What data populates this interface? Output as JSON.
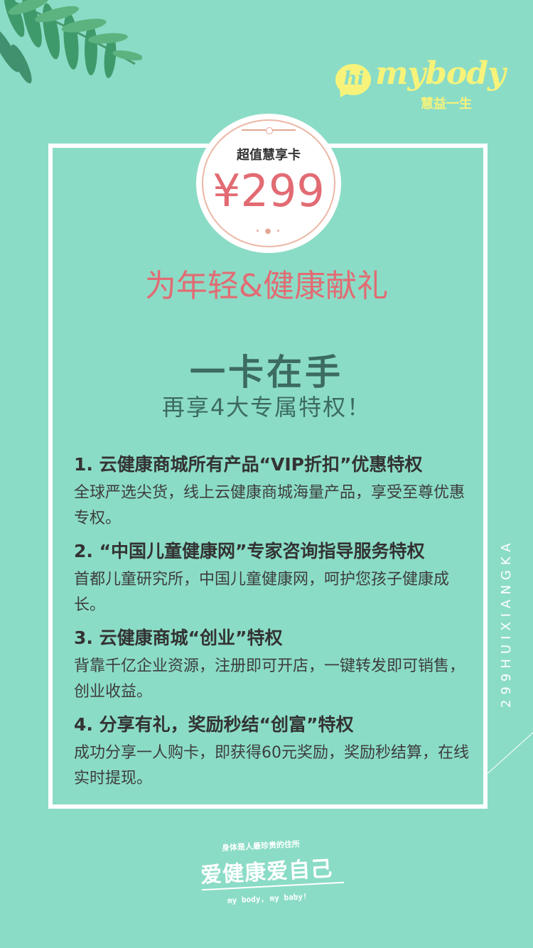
{
  "brand": {
    "logo_hi": "hi",
    "logo_name": "mybody",
    "logo_slogan": "慧益一生"
  },
  "badge": {
    "label": "超值慧享卡",
    "price": "¥299"
  },
  "headline": "为年轻&健康献礼",
  "title_main": "一卡在手",
  "title_sub": "再享4大专属特权！",
  "privileges": [
    {
      "title": "1. 云健康商城所有产品“VIP折扣”优惠特权",
      "desc": "全球严选尖货，线上云健康商城海量产品，享受至尊优惠专权。"
    },
    {
      "title": "2. “中国儿童健康网”专家咨询指导服务特权",
      "desc": "首都儿童研究所，中国儿童健康网，呵护您孩子健康成长。"
    },
    {
      "title": "3. 云健康商城“创业”特权",
      "desc": "背靠千亿企业资源，注册即可开店，一键转发即可销售，创业收益。"
    },
    {
      "title": "4. 分享有礼，奖励秒结“创富”特权",
      "desc": "成功分享一人购卡，即获得60元奖励，奖励秒结算，在线实时提现。"
    }
  ],
  "side_text": "299HUIXIANGKA",
  "footer": {
    "small": "身体是人最珍贵的住所",
    "big": "爱健康爱自己",
    "english": "my body, my baby!"
  },
  "colors": {
    "background": "#8bdcc6",
    "accent_pink": "#e26b73",
    "logo_yellow": "#f7f37a",
    "title_green": "#3c6b62"
  },
  "icons": [
    "leaf-decoration-icon",
    "hi-speech-bubble-icon"
  ]
}
